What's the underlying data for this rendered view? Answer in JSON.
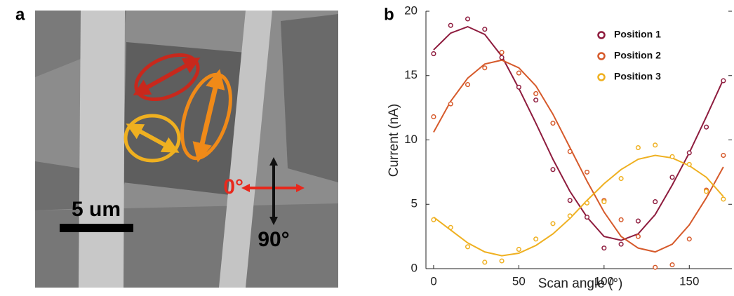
{
  "figure": {
    "panel_a": {
      "label": "a",
      "scale_bar": "5 um",
      "angle_0": "0°",
      "angle_90": "90°"
    },
    "panel_b": {
      "label": "b"
    }
  },
  "chart_data": {
    "type": "scatter-fit",
    "x_label": "Scan angle (°)",
    "y_label": "Current (nA)",
    "x": [
      0,
      10,
      20,
      30,
      40,
      50,
      60,
      70,
      80,
      90,
      100,
      110,
      120,
      130,
      140,
      150,
      160,
      170
    ],
    "xlim": [
      -4.5,
      175
    ],
    "xticks": [
      0,
      50,
      100,
      150
    ],
    "ylim": [
      0,
      20
    ],
    "yticks": [
      0,
      5,
      10,
      15,
      20
    ],
    "legend": "upper-right",
    "series": [
      {
        "name": "Position 1",
        "color": "#8e1c3e",
        "values": [
          16.7,
          18.9,
          19.4,
          18.6,
          16.4,
          14.1,
          13.1,
          7.7,
          5.3,
          4.0,
          1.6,
          1.9,
          3.7,
          5.2,
          7.1,
          9.0,
          11.0,
          14.6
        ],
        "fit": [
          17.0,
          18.3,
          18.8,
          18.2,
          16.5,
          14.0,
          11.3,
          8.5,
          6.0,
          4.0,
          2.5,
          2.2,
          2.7,
          4.2,
          6.5,
          9.0,
          11.8,
          14.7
        ]
      },
      {
        "name": "Position 2",
        "color": "#d65a2b",
        "values": [
          11.8,
          12.8,
          14.3,
          15.6,
          16.8,
          15.2,
          13.6,
          11.3,
          9.1,
          7.5,
          5.3,
          3.8,
          2.5,
          0.1,
          0.3,
          2.3,
          6.1,
          8.8
        ],
        "fit": [
          10.6,
          13.0,
          14.8,
          15.9,
          16.2,
          15.6,
          14.2,
          12.0,
          9.4,
          6.8,
          4.4,
          2.5,
          1.6,
          1.3,
          1.9,
          3.4,
          5.5,
          7.9
        ]
      },
      {
        "name": "Position 3",
        "color": "#efb020",
        "values": [
          3.8,
          3.2,
          1.7,
          0.5,
          0.6,
          1.5,
          2.3,
          3.5,
          4.1,
          5.1,
          5.2,
          7.0,
          9.4,
          9.6,
          8.7,
          8.1,
          6.0,
          5.4
        ],
        "fit": [
          4.0,
          3.0,
          2.0,
          1.3,
          1.0,
          1.2,
          1.8,
          2.7,
          3.9,
          5.3,
          6.6,
          7.7,
          8.5,
          8.8,
          8.6,
          8.0,
          7.1,
          5.6
        ]
      }
    ]
  }
}
